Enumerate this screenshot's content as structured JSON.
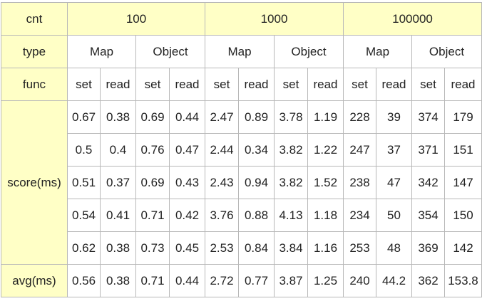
{
  "table": {
    "cnt_label": "cnt",
    "type_label": "type",
    "func_label": "func",
    "score_label": "score(ms)",
    "avg_label": "avg(ms)",
    "counts": [
      "100",
      "1000",
      "100000"
    ],
    "types": [
      "Map",
      "Object",
      "Map",
      "Object",
      "Map",
      "Object"
    ],
    "funcs": [
      "set",
      "read",
      "set",
      "read",
      "set",
      "read",
      "set",
      "read",
      "set",
      "read",
      "set",
      "read"
    ],
    "scores": [
      [
        "0.67",
        "0.38",
        "0.69",
        "0.44",
        "2.47",
        "0.89",
        "3.78",
        "1.19",
        "228",
        "39",
        "374",
        "179"
      ],
      [
        "0.5",
        "0.4",
        "0.76",
        "0.47",
        "2.44",
        "0.34",
        "3.82",
        "1.22",
        "247",
        "37",
        "371",
        "151"
      ],
      [
        "0.51",
        "0.37",
        "0.69",
        "0.43",
        "2.43",
        "0.94",
        "3.82",
        "1.52",
        "238",
        "47",
        "342",
        "147"
      ],
      [
        "0.54",
        "0.41",
        "0.71",
        "0.42",
        "3.76",
        "0.88",
        "4.13",
        "1.18",
        "234",
        "50",
        "354",
        "150"
      ],
      [
        "0.62",
        "0.38",
        "0.73",
        "0.45",
        "2.53",
        "0.84",
        "3.84",
        "1.16",
        "253",
        "48",
        "369",
        "142"
      ]
    ],
    "avg": [
      "0.56",
      "0.38",
      "0.71",
      "0.44",
      "2.72",
      "0.77",
      "3.87",
      "1.25",
      "240",
      "44.2",
      "362",
      "153.8"
    ]
  }
}
